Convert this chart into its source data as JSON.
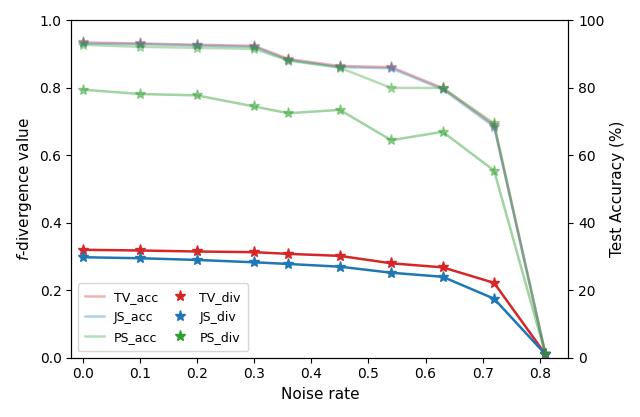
{
  "noise_rate": [
    0.0,
    0.1,
    0.2,
    0.3,
    0.36,
    0.45,
    0.54,
    0.63,
    0.72,
    0.81
  ],
  "TV_acc": [
    93.5,
    93.2,
    92.8,
    92.5,
    88.6,
    86.5,
    86.2,
    80.0,
    69.0,
    1.0
  ],
  "JS_acc": [
    93.2,
    93.0,
    92.6,
    92.2,
    88.3,
    86.2,
    85.8,
    79.6,
    68.5,
    1.0
  ],
  "PS_acc": [
    92.8,
    92.2,
    91.9,
    91.6,
    88.1,
    86.0,
    80.0,
    80.0,
    69.5,
    1.0
  ],
  "TV_div": [
    0.32,
    0.318,
    0.315,
    0.313,
    0.308,
    0.302,
    0.28,
    0.268,
    0.222,
    0.01
  ],
  "JS_div": [
    0.298,
    0.295,
    0.29,
    0.283,
    0.278,
    0.27,
    0.252,
    0.24,
    0.175,
    0.01
  ],
  "PS_div": [
    0.795,
    0.782,
    0.778,
    0.745,
    0.725,
    0.735,
    0.645,
    0.67,
    0.555,
    0.01
  ],
  "TV_acc_color": "#d62728",
  "JS_acc_color": "#1f77b4",
  "PS_acc_color": "#2ca02c",
  "TV_div_color": "#d62728",
  "JS_div_color": "#1f77b4",
  "PS_div_color": "#2ca02c",
  "acc_alpha": 0.35,
  "ps_div_alpha": 0.45,
  "ylabel_left": "$f$-divergence value",
  "ylabel_right": "Test Accuracy (%)",
  "xlabel": "Noise rate",
  "ylim_left": [
    0.0,
    1.0
  ],
  "ylim_right": [
    0,
    100
  ],
  "xticks": [
    0.0,
    0.1,
    0.2,
    0.3,
    0.4,
    0.5,
    0.6,
    0.7,
    0.8
  ],
  "xlim": [
    -0.02,
    0.85
  ]
}
